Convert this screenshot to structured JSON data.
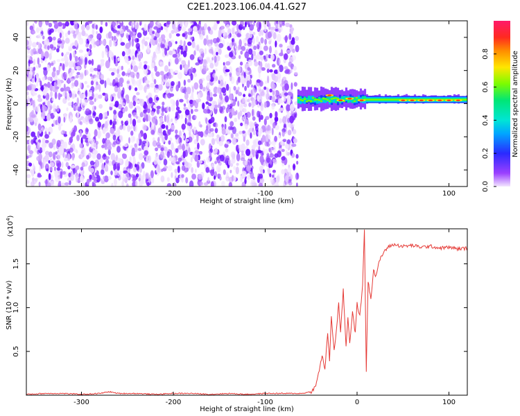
{
  "figure_title": "C2E1.2023.106.04.41.G27",
  "colors": {
    "spectrum_low": "#9B40FF",
    "spectrum_mid": "#00E676",
    "spectrum_high": "#FF1744",
    "snr_line": "#E53935"
  },
  "chart_data": [
    {
      "type": "heatmap",
      "title": "",
      "xlabel": "Height of straight line (km)",
      "ylabel": "Frequency (Hz)",
      "xlim": [
        -360,
        120
      ],
      "ylim": [
        -50,
        50
      ],
      "x_ticks": [
        -300,
        -200,
        -100,
        0,
        100
      ],
      "y_ticks": [
        -40,
        -20,
        0,
        20,
        40
      ],
      "colorbar": {
        "label": "Normalized spectral amplitude",
        "range": [
          0,
          1
        ],
        "ticks": [
          0.0,
          0.2,
          0.4,
          0.6,
          0.8
        ]
      },
      "regions": [
        {
          "x_range": [
            -360,
            -65
          ],
          "freq_range": [
            -50,
            50
          ],
          "amplitude": "0.0-0.2 (noise)"
        },
        {
          "x_range": [
            -65,
            120
          ],
          "freq_range": [
            0,
            6
          ],
          "amplitude": "0.3-0.9 (narrow band near 2 Hz)"
        }
      ]
    },
    {
      "type": "line",
      "title": "",
      "xlabel": "Height of straight line (km)",
      "ylabel": "SNR (10 * v/v)",
      "y_scale_label": "(x10",
      "y_scale_exp": "4",
      "y_scale_close": ")",
      "xlim": [
        -360,
        120
      ],
      "ylim": [
        0,
        1.9
      ],
      "x_ticks": [
        -300,
        -200,
        -100,
        0,
        100
      ],
      "y_ticks": [
        0.5,
        1.0,
        1.5
      ],
      "series": [
        {
          "x": [
            -360,
            -340,
            -320,
            -300,
            -280,
            -270,
            -260,
            -240,
            -220,
            -200,
            -180,
            -160,
            -140,
            -120,
            -100,
            -80,
            -60,
            -50,
            -45,
            -42,
            -38,
            -35,
            -32,
            -30,
            -28,
            -25,
            -22,
            -20,
            -18,
            -15,
            -12,
            -10,
            -8,
            -5,
            -2,
            0,
            3,
            6,
            8,
            10,
            12,
            15,
            18,
            20,
            25,
            30,
            35,
            40,
            50,
            60,
            70,
            80,
            90,
            100,
            110,
            120
          ],
          "y": [
            0.01,
            0.02,
            0.02,
            0.01,
            0.02,
            0.04,
            0.02,
            0.02,
            0.01,
            0.02,
            0.02,
            0.01,
            0.02,
            0.01,
            0.02,
            0.02,
            0.02,
            0.04,
            0.1,
            0.25,
            0.45,
            0.3,
            0.7,
            0.4,
            0.9,
            0.5,
            0.8,
            1.05,
            0.7,
            1.2,
            0.55,
            0.9,
            0.6,
            0.95,
            0.7,
            1.05,
            0.9,
            1.25,
            1.9,
            0.25,
            1.3,
            1.1,
            1.45,
            1.35,
            1.55,
            1.65,
            1.7,
            1.72,
            1.7,
            1.71,
            1.69,
            1.7,
            1.68,
            1.69,
            1.67,
            1.68
          ]
        }
      ]
    }
  ]
}
